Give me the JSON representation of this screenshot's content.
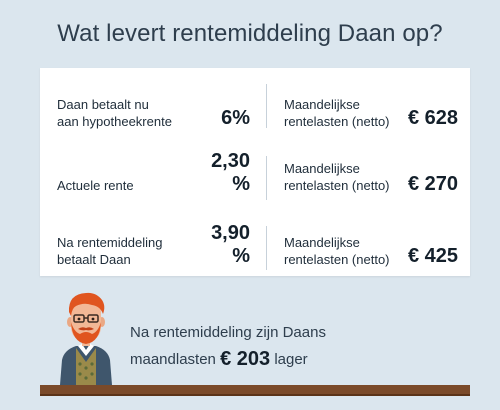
{
  "title": "Wat levert rentemiddeling Daan op?",
  "rows": [
    {
      "label_line1": "Daan betaalt nu",
      "label_line2": "aan hypotheekrente",
      "rate": "6%",
      "monthly_label_line1": "Maandelijkse",
      "monthly_label_line2": "rentelasten (netto)",
      "amount": "€ 628"
    },
    {
      "label_line1": "Actuele rente",
      "label_line2": "",
      "rate": "2,30 %",
      "monthly_label_line1": "Maandelijkse",
      "monthly_label_line2": "rentelasten (netto)",
      "amount": "€ 270"
    },
    {
      "label_line1": "Na rentemiddeling",
      "label_line2": "betaalt Daan",
      "rate": "3,90 %",
      "monthly_label_line1": "Maandelijkse",
      "monthly_label_line2": "rentelasten (netto)",
      "amount": "€ 425"
    }
  ],
  "summary": {
    "line1": "Na rentemiddeling zijn Daans",
    "line2_prefix": "maandlasten",
    "amount": "€ 203",
    "line2_suffix": "lager"
  },
  "colors": {
    "background": "#dbe6ee",
    "card": "#ffffff",
    "desk": "#7a4a2a",
    "hair": "#e0551f",
    "jacket": "#3f566c"
  },
  "icons": {
    "avatar": "man-with-red-hair-and-beard-icon"
  }
}
